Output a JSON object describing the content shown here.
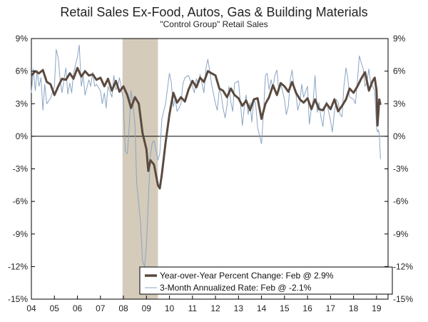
{
  "chart_data": {
    "type": "line",
    "title": "Retail Sales Ex-Food, Autos, Gas & Building Materials",
    "subtitle": "\"Control Group\" Retail Sales",
    "y_left_ticks": [
      "9%",
      "6%",
      "3%",
      "0%",
      "-3%",
      "-6%",
      "-9%",
      "-12%",
      "-15%"
    ],
    "y_right_ticks": [
      "9%",
      "6%",
      "3%",
      "0%",
      "-3%",
      "-6%",
      "-9%",
      "-12%",
      "-15%"
    ],
    "x_ticks": [
      "04",
      "05",
      "06",
      "07",
      "08",
      "09",
      "10",
      "11",
      "12",
      "13",
      "14",
      "15",
      "16",
      "17",
      "18",
      "19"
    ],
    "ylim": [
      -15,
      9
    ],
    "xlim": [
      2004.0,
      2019.5
    ],
    "recession_shading": {
      "start": 2007.96,
      "end": 2009.5
    },
    "grid": false,
    "colors": {
      "yoy": "#5a4a3f",
      "three_month": "#8aa5c2",
      "recession": "#d4cbbb",
      "zero_line": "#000000"
    },
    "legend": {
      "placement": "bottom-right",
      "entries": [
        "Year-over-Year Percent Change: Feb @ 2.9%",
        "3-Month Annualized Rate: Feb @ -2.1%"
      ]
    },
    "series": [
      {
        "name": "Year-over-Year Percent Change: Feb @ 2.9%",
        "points": [
          [
            2004.0,
            5.6
          ],
          [
            2004.17,
            6.0
          ],
          [
            2004.33,
            5.8
          ],
          [
            2004.5,
            6.1
          ],
          [
            2004.67,
            5.0
          ],
          [
            2004.83,
            4.8
          ],
          [
            2005.0,
            3.8
          ],
          [
            2005.17,
            4.6
          ],
          [
            2005.33,
            5.3
          ],
          [
            2005.5,
            5.2
          ],
          [
            2005.67,
            5.8
          ],
          [
            2005.83,
            5.3
          ],
          [
            2006.0,
            6.3
          ],
          [
            2006.17,
            5.5
          ],
          [
            2006.33,
            6.0
          ],
          [
            2006.5,
            5.6
          ],
          [
            2006.67,
            5.7
          ],
          [
            2006.83,
            5.2
          ],
          [
            2007.0,
            5.4
          ],
          [
            2007.17,
            4.6
          ],
          [
            2007.33,
            5.3
          ],
          [
            2007.5,
            4.2
          ],
          [
            2007.67,
            5.1
          ],
          [
            2007.83,
            4.1
          ],
          [
            2008.0,
            4.6
          ],
          [
            2008.17,
            3.8
          ],
          [
            2008.33,
            2.6
          ],
          [
            2008.5,
            3.6
          ],
          [
            2008.67,
            3.0
          ],
          [
            2008.83,
            0.3
          ],
          [
            2009.0,
            -1.2
          ],
          [
            2009.08,
            -3.2
          ],
          [
            2009.17,
            -2.2
          ],
          [
            2009.33,
            -2.6
          ],
          [
            2009.5,
            -4.5
          ],
          [
            2009.58,
            -4.8
          ],
          [
            2009.67,
            -3.5
          ],
          [
            2009.83,
            -0.6
          ],
          [
            2010.0,
            2.0
          ],
          [
            2010.17,
            4.0
          ],
          [
            2010.33,
            3.1
          ],
          [
            2010.5,
            3.6
          ],
          [
            2010.67,
            3.2
          ],
          [
            2010.83,
            4.3
          ],
          [
            2011.0,
            5.1
          ],
          [
            2011.17,
            4.5
          ],
          [
            2011.33,
            5.4
          ],
          [
            2011.5,
            5.0
          ],
          [
            2011.67,
            6.0
          ],
          [
            2011.83,
            5.8
          ],
          [
            2012.0,
            5.6
          ],
          [
            2012.17,
            4.4
          ],
          [
            2012.33,
            4.2
          ],
          [
            2012.5,
            3.6
          ],
          [
            2012.67,
            4.4
          ],
          [
            2012.83,
            3.8
          ],
          [
            2013.0,
            3.5
          ],
          [
            2013.17,
            2.8
          ],
          [
            2013.33,
            3.3
          ],
          [
            2013.5,
            2.4
          ],
          [
            2013.67,
            3.4
          ],
          [
            2013.83,
            3.5
          ],
          [
            2014.0,
            1.6
          ],
          [
            2014.17,
            3.0
          ],
          [
            2014.33,
            3.6
          ],
          [
            2014.5,
            4.7
          ],
          [
            2014.67,
            3.8
          ],
          [
            2014.83,
            4.9
          ],
          [
            2015.0,
            4.6
          ],
          [
            2015.17,
            4.1
          ],
          [
            2015.33,
            5.0
          ],
          [
            2015.5,
            4.0
          ],
          [
            2015.67,
            3.4
          ],
          [
            2015.83,
            3.1
          ],
          [
            2016.0,
            3.5
          ],
          [
            2016.17,
            2.5
          ],
          [
            2016.33,
            3.4
          ],
          [
            2016.5,
            2.5
          ],
          [
            2016.67,
            2.4
          ],
          [
            2016.83,
            3.0
          ],
          [
            2017.0,
            2.5
          ],
          [
            2017.17,
            3.4
          ],
          [
            2017.33,
            2.3
          ],
          [
            2017.5,
            2.8
          ],
          [
            2017.67,
            3.4
          ],
          [
            2017.83,
            4.4
          ],
          [
            2018.0,
            4.0
          ],
          [
            2018.17,
            4.6
          ],
          [
            2018.33,
            5.3
          ],
          [
            2018.5,
            5.9
          ],
          [
            2018.67,
            4.2
          ],
          [
            2018.83,
            5.1
          ],
          [
            2018.92,
            5.4
          ],
          [
            2019.0,
            4.2
          ],
          [
            2019.04,
            1.0
          ],
          [
            2019.12,
            3.4
          ],
          [
            2019.17,
            2.9
          ]
        ]
      },
      {
        "name": "3-Month Annualized Rate: Feb @ -2.1%",
        "points": [
          [
            2004.0,
            4.0
          ],
          [
            2004.08,
            6.2
          ],
          [
            2004.17,
            4.2
          ],
          [
            2004.25,
            6.1
          ],
          [
            2004.33,
            4.6
          ],
          [
            2004.42,
            5.4
          ],
          [
            2004.5,
            2.4
          ],
          [
            2004.58,
            4.8
          ],
          [
            2004.67,
            3.0
          ],
          [
            2004.83,
            3.5
          ],
          [
            2005.0,
            4.6
          ],
          [
            2005.08,
            8.0
          ],
          [
            2005.17,
            7.2
          ],
          [
            2005.25,
            5.2
          ],
          [
            2005.33,
            4.0
          ],
          [
            2005.5,
            6.3
          ],
          [
            2005.58,
            3.9
          ],
          [
            2005.67,
            4.9
          ],
          [
            2005.75,
            4.0
          ],
          [
            2005.83,
            5.8
          ],
          [
            2006.0,
            7.3
          ],
          [
            2006.08,
            8.4
          ],
          [
            2006.17,
            4.6
          ],
          [
            2006.25,
            5.6
          ],
          [
            2006.33,
            3.8
          ],
          [
            2006.5,
            5.2
          ],
          [
            2006.58,
            4.6
          ],
          [
            2006.67,
            5.9
          ],
          [
            2006.75,
            4.6
          ],
          [
            2006.83,
            4.8
          ],
          [
            2007.0,
            4.2
          ],
          [
            2007.08,
            3.0
          ],
          [
            2007.17,
            4.0
          ],
          [
            2007.25,
            2.6
          ],
          [
            2007.33,
            4.6
          ],
          [
            2007.5,
            3.6
          ],
          [
            2007.58,
            5.6
          ],
          [
            2007.67,
            4.3
          ],
          [
            2007.75,
            4.6
          ],
          [
            2007.83,
            5.4
          ],
          [
            2008.0,
            3.3
          ],
          [
            2008.08,
            -1.4
          ],
          [
            2008.17,
            -1.6
          ],
          [
            2008.25,
            0.8
          ],
          [
            2008.33,
            4.2
          ],
          [
            2008.42,
            2.8
          ],
          [
            2008.5,
            1.1
          ],
          [
            2008.58,
            -4.4
          ],
          [
            2008.67,
            -6.3
          ],
          [
            2008.75,
            -8.0
          ],
          [
            2008.83,
            -11.5
          ],
          [
            2008.92,
            -12.0
          ],
          [
            2009.0,
            -10.0
          ],
          [
            2009.08,
            -6.0
          ],
          [
            2009.17,
            -1.8
          ],
          [
            2009.25,
            -0.6
          ],
          [
            2009.33,
            -0.4
          ],
          [
            2009.5,
            -2.2
          ],
          [
            2009.58,
            -1.6
          ],
          [
            2009.67,
            1.6
          ],
          [
            2009.83,
            3.0
          ],
          [
            2010.0,
            5.8
          ],
          [
            2010.08,
            5.0
          ],
          [
            2010.17,
            2.7
          ],
          [
            2010.25,
            3.5
          ],
          [
            2010.33,
            2.3
          ],
          [
            2010.42,
            2.6
          ],
          [
            2010.5,
            3.0
          ],
          [
            2010.58,
            4.8
          ],
          [
            2010.67,
            5.4
          ],
          [
            2010.83,
            5.6
          ],
          [
            2011.0,
            4.6
          ],
          [
            2011.08,
            4.0
          ],
          [
            2011.17,
            5.3
          ],
          [
            2011.25,
            4.8
          ],
          [
            2011.33,
            5.7
          ],
          [
            2011.5,
            4.0
          ],
          [
            2011.58,
            6.2
          ],
          [
            2011.67,
            7.1
          ],
          [
            2011.75,
            6.0
          ],
          [
            2011.83,
            4.8
          ],
          [
            2012.0,
            3.0
          ],
          [
            2012.08,
            2.4
          ],
          [
            2012.17,
            4.4
          ],
          [
            2012.25,
            3.8
          ],
          [
            2012.33,
            2.6
          ],
          [
            2012.42,
            1.7
          ],
          [
            2012.5,
            2.8
          ],
          [
            2012.58,
            4.6
          ],
          [
            2012.67,
            3.1
          ],
          [
            2012.75,
            2.3
          ],
          [
            2012.83,
            4.9
          ],
          [
            2013.0,
            5.1
          ],
          [
            2013.08,
            3.1
          ],
          [
            2013.17,
            1.0
          ],
          [
            2013.25,
            2.6
          ],
          [
            2013.33,
            3.8
          ],
          [
            2013.42,
            2.0
          ],
          [
            2013.5,
            3.1
          ],
          [
            2013.58,
            1.3
          ],
          [
            2013.67,
            3.5
          ],
          [
            2013.75,
            2.9
          ],
          [
            2013.83,
            0.8
          ],
          [
            2014.0,
            -0.7
          ],
          [
            2014.08,
            2.0
          ],
          [
            2014.17,
            5.6
          ],
          [
            2014.25,
            5.8
          ],
          [
            2014.33,
            4.3
          ],
          [
            2014.42,
            5.2
          ],
          [
            2014.5,
            4.4
          ],
          [
            2014.58,
            5.6
          ],
          [
            2014.67,
            6.1
          ],
          [
            2014.75,
            4.2
          ],
          [
            2014.83,
            4.9
          ],
          [
            2015.0,
            3.4
          ],
          [
            2015.08,
            2.0
          ],
          [
            2015.17,
            2.8
          ],
          [
            2015.25,
            5.2
          ],
          [
            2015.33,
            6.1
          ],
          [
            2015.42,
            4.4
          ],
          [
            2015.5,
            3.8
          ],
          [
            2015.58,
            2.4
          ],
          [
            2015.67,
            3.2
          ],
          [
            2015.75,
            4.8
          ],
          [
            2015.83,
            3.6
          ],
          [
            2016.0,
            4.6
          ],
          [
            2016.08,
            1.1
          ],
          [
            2016.17,
            2.6
          ],
          [
            2016.25,
            3.4
          ],
          [
            2016.33,
            5.6
          ],
          [
            2016.42,
            2.2
          ],
          [
            2016.5,
            3.1
          ],
          [
            2016.58,
            1.8
          ],
          [
            2016.67,
            0.9
          ],
          [
            2016.75,
            2.7
          ],
          [
            2016.83,
            3.2
          ],
          [
            2017.0,
            1.4
          ],
          [
            2017.08,
            0.4
          ],
          [
            2017.17,
            2.2
          ],
          [
            2017.25,
            3.4
          ],
          [
            2017.33,
            3.1
          ],
          [
            2017.42,
            2.0
          ],
          [
            2017.5,
            1.8
          ],
          [
            2017.58,
            4.6
          ],
          [
            2017.67,
            6.3
          ],
          [
            2017.75,
            5.4
          ],
          [
            2017.83,
            3.6
          ],
          [
            2018.0,
            3.4
          ],
          [
            2018.08,
            3.0
          ],
          [
            2018.17,
            5.1
          ],
          [
            2018.25,
            7.4
          ],
          [
            2018.33,
            6.8
          ],
          [
            2018.42,
            6.2
          ],
          [
            2018.5,
            4.6
          ],
          [
            2018.58,
            5.0
          ],
          [
            2018.67,
            6.2
          ],
          [
            2018.75,
            4.8
          ],
          [
            2018.83,
            4.6
          ],
          [
            2018.92,
            4.2
          ],
          [
            2019.0,
            0.8
          ],
          [
            2019.04,
            0.4
          ],
          [
            2019.08,
            0.6
          ],
          [
            2019.12,
            0.2
          ],
          [
            2019.17,
            -2.1
          ]
        ]
      }
    ]
  }
}
